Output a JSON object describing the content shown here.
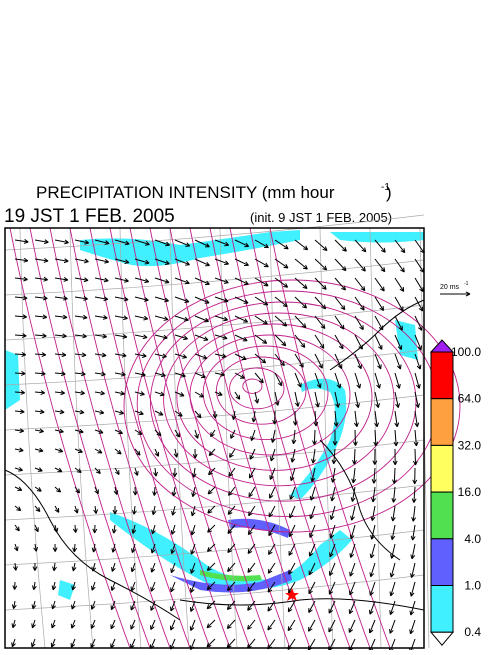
{
  "title": {
    "main": "PRECIPITATION INTENSITY (mm hour",
    "exponent": "-1",
    "close": ")"
  },
  "valid_time": "19 JST 1 FEB. 2005",
  "init_time": "(init. 9 JST 1 FEB. 2005)",
  "vector_scale": {
    "label": "20 ms",
    "exponent": "-1"
  },
  "colorbar": {
    "labels": [
      "100.0",
      "64.0",
      "32.0",
      "16.0",
      "4.0",
      "1.0",
      "0.4"
    ],
    "colors": [
      "#a020f0",
      "#ff0000",
      "#ffa040",
      "#ffff60",
      "#50e050",
      "#6060ff",
      "#40f0ff",
      "#ffffff"
    ]
  }
}
